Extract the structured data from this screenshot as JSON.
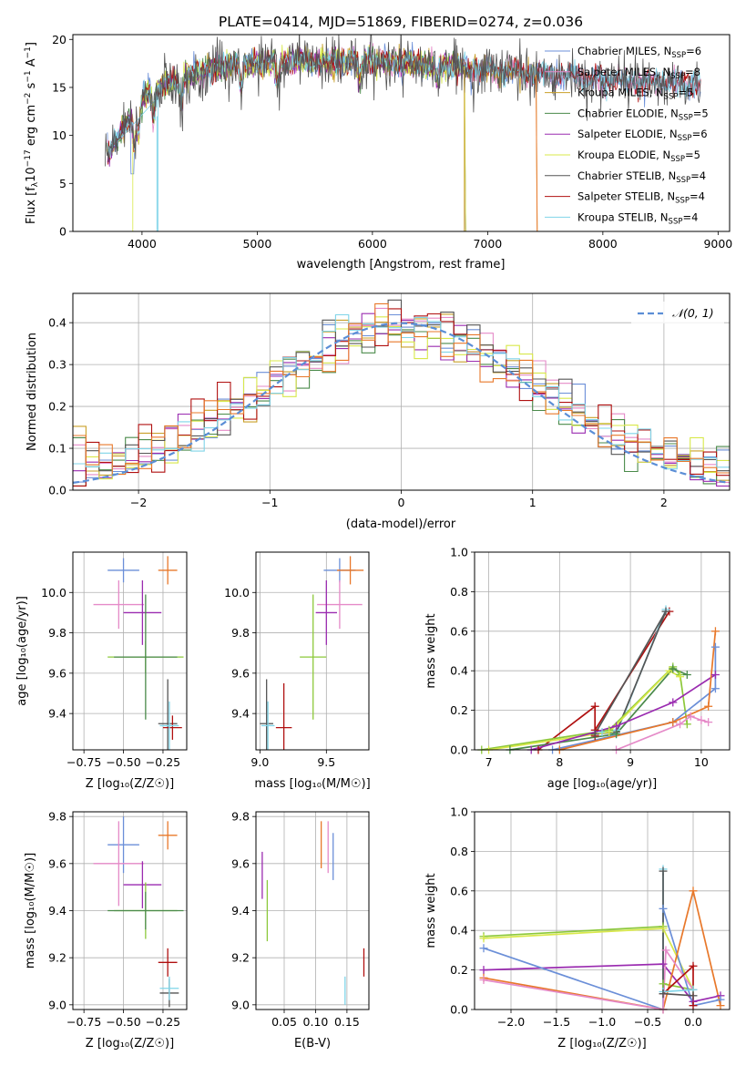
{
  "figure_title": "PLATE=0414, MJD=51869, FIBERID=0274, z=0.036",
  "colors": {
    "Chabrier MILES": "#6b8fd8",
    "Salpeter MILES": "#e58ac8",
    "Kroupa MILES": "#c9a02a",
    "Chabrier ELODIE": "#4a8a4a",
    "Salpeter ELODIE": "#9a2bb0",
    "Kroupa ELODIE": "#d8e84a",
    "Chabrier STELIB": "#555555",
    "Salpeter STELIB": "#b01010",
    "Kroupa STELIB": "#7fd4e8",
    "orange": "#e8782a",
    "lime": "#8cc83a",
    "normal_curve": "#5b8ed6"
  },
  "chart_data": [
    {
      "id": "spectrum",
      "type": "line",
      "xlabel_main": "wavelength [Angstrom, rest frame]",
      "ylabel_main": "Flux [f",
      "ylabel_tail": "10",
      "ylabel_exp": "−17",
      "ylabel_rest": " erg cm",
      "ylabel_rest2": " s",
      "ylabel_rest3": " A",
      "xlim": [
        3400,
        9100
      ],
      "ylim": [
        0,
        20.5
      ],
      "xticks": [
        4000,
        5000,
        6000,
        7000,
        8000,
        9000
      ],
      "yticks": [
        0,
        5,
        10,
        15,
        20
      ],
      "legend": [
        {
          "label": "Chabrier MILES, N",
          "sub": "SSP",
          "eq": "=6",
          "color_key": "Chabrier MILES"
        },
        {
          "label": "Salpeter MILES, N",
          "sub": "SSP",
          "eq": "=8",
          "color_key": "Salpeter MILES"
        },
        {
          "label": "Kroupa MILES, N",
          "sub": "SSP",
          "eq": "=5",
          "color_key": "Kroupa MILES"
        },
        {
          "label": "Chabrier ELODIE, N",
          "sub": "SSP",
          "eq": "=5",
          "color_key": "Chabrier ELODIE"
        },
        {
          "label": "Salpeter ELODIE, N",
          "sub": "SSP",
          "eq": "=6",
          "color_key": "Salpeter ELODIE"
        },
        {
          "label": "Kroupa ELODIE, N",
          "sub": "SSP",
          "eq": "=5",
          "color_key": "Kroupa ELODIE"
        },
        {
          "label": "Chabrier STELIB, N",
          "sub": "SSP",
          "eq": "=4",
          "color_key": "Chabrier STELIB"
        },
        {
          "label": "Salpeter STELIB, N",
          "sub": "SSP",
          "eq": "=4",
          "color_key": "Salpeter STELIB"
        },
        {
          "label": "Kroupa STELIB, N",
          "sub": "SSP",
          "eq": "=4",
          "color_key": "Kroupa STELIB"
        }
      ],
      "continuum": [
        [
          3680,
          7.5
        ],
        [
          3750,
          9
        ],
        [
          3850,
          11
        ],
        [
          3950,
          13
        ],
        [
          4050,
          14.5
        ],
        [
          4200,
          15.3
        ],
        [
          4400,
          16.2
        ],
        [
          4600,
          17.0
        ],
        [
          4800,
          17.4
        ],
        [
          5000,
          17.5
        ],
        [
          5200,
          17.6
        ],
        [
          5400,
          17.7
        ],
        [
          5600,
          17.7
        ],
        [
          5800,
          17.7
        ],
        [
          6000,
          17.8
        ],
        [
          6200,
          17.6
        ],
        [
          6400,
          17.4
        ],
        [
          6600,
          17.2
        ],
        [
          6800,
          17.0
        ],
        [
          7000,
          16.8
        ],
        [
          7200,
          16.6
        ],
        [
          7400,
          16.4
        ],
        [
          7600,
          16.2
        ],
        [
          7800,
          16.0
        ],
        [
          8000,
          15.8
        ],
        [
          8200,
          15.7
        ],
        [
          8400,
          15.6
        ],
        [
          8600,
          15.4
        ],
        [
          8850,
          15.3
        ]
      ],
      "absorption": [
        [
          3934,
          3.5
        ],
        [
          3969,
          3.5
        ],
        [
          4101,
          3
        ],
        [
          4340,
          3
        ],
        [
          4861,
          2.5
        ],
        [
          5175,
          2
        ],
        [
          5890,
          2
        ],
        [
          6563,
          1.5
        ]
      ],
      "cutoffs": [
        {
          "series": "Kroupa ELODIE",
          "start": 3920,
          "end": 6800
        },
        {
          "series": "Chabrier ELODIE",
          "start": 3700,
          "end": 6800
        },
        {
          "series": "Salpeter ELODIE",
          "start": 3700,
          "end": 6800
        },
        {
          "series": "Kroupa MILES",
          "start": 3700,
          "end": 7420
        },
        {
          "series": "Kroupa STELIB",
          "start": 3700,
          "end": 8850
        },
        {
          "series": "Chabrier STELIB",
          "start": 3680,
          "end": 8850
        }
      ]
    },
    {
      "id": "residuals",
      "type": "histogram",
      "xlabel": "(data-model)/error",
      "ylabel": "Normed distribution",
      "xlim": [
        -2.5,
        2.5
      ],
      "ylim": [
        0,
        0.47
      ],
      "xticks": [
        -2,
        -1,
        0,
        1,
        2
      ],
      "xtick_labels": [
        "−2",
        "−1",
        "0",
        "1",
        "2"
      ],
      "yticks": [
        0.0,
        0.1,
        0.2,
        0.3,
        0.4
      ],
      "ytick_labels": [
        "0.0",
        "0.1",
        "0.2",
        "0.3",
        "0.4"
      ],
      "bin_width": 0.1,
      "legend_label": "𝒩(0, 1)"
    },
    {
      "id": "age_vs_Z",
      "type": "errorbar",
      "xlabel": "Z [log₁₀(Z/Z☉)]",
      "ylabel": "age  [log₁₀(age/yr)]",
      "xlim": [
        -0.82,
        -0.1
      ],
      "ylim": [
        9.22,
        10.2
      ],
      "xticks": [
        -0.75,
        -0.5,
        -0.25
      ],
      "xtick_labels": [
        "−0.75",
        "−0.50",
        "−0.25"
      ],
      "yticks": [
        9.4,
        9.6,
        9.8,
        10.0
      ],
      "yticks_labels": [
        "9.4",
        "9.6",
        "9.8",
        "10.0"
      ],
      "points": [
        {
          "x": -0.5,
          "y": 10.11,
          "xerr": 0.1,
          "yerr": 0.06,
          "color_key": "Chabrier MILES"
        },
        {
          "x": -0.22,
          "y": 10.11,
          "xerr": 0.06,
          "yerr": 0.07,
          "color_key": "orange"
        },
        {
          "x": -0.53,
          "y": 9.94,
          "xerr": 0.16,
          "yerr": 0.12,
          "color_key": "Salpeter MILES"
        },
        {
          "x": -0.38,
          "y": 9.9,
          "xerr": 0.12,
          "yerr": 0.16,
          "color_key": "Salpeter ELODIE"
        },
        {
          "x": -0.36,
          "y": 9.68,
          "xerr": 0.24,
          "yerr": 0.08,
          "color_key": "lime"
        },
        {
          "x": -0.36,
          "y": 9.68,
          "xerr": 0.2,
          "yerr": 0.31,
          "color_key": "Chabrier ELODIE"
        },
        {
          "x": -0.22,
          "y": 9.35,
          "xerr": 0.06,
          "yerr": 0.22,
          "color_key": "Chabrier STELIB"
        },
        {
          "x": -0.19,
          "y": 9.33,
          "xerr": 0.06,
          "yerr": 0.06,
          "color_key": "Salpeter STELIB"
        },
        {
          "x": -0.21,
          "y": 9.34,
          "xerr": 0.06,
          "yerr": 0.12,
          "color_key": "Kroupa STELIB"
        }
      ]
    },
    {
      "id": "age_vs_mass",
      "type": "errorbar",
      "xlabel": "mass [log₁₀(M/M☉)]",
      "xlim": [
        8.97,
        9.82
      ],
      "ylim": [
        9.22,
        10.2
      ],
      "xticks": [
        9.0,
        9.5
      ],
      "xtick_labels": [
        "9.0",
        "9.5"
      ],
      "yticks": [
        9.4,
        9.6,
        9.8,
        10.0
      ],
      "yticks_labels": [
        "9.4",
        "9.6",
        "9.8",
        "10.0"
      ],
      "points": [
        {
          "x": 9.6,
          "y": 10.11,
          "xerr": 0.12,
          "yerr": 0.06,
          "color_key": "Chabrier MILES"
        },
        {
          "x": 9.68,
          "y": 10.11,
          "xerr": 0.1,
          "yerr": 0.07,
          "color_key": "orange"
        },
        {
          "x": 9.6,
          "y": 9.94,
          "xerr": 0.17,
          "yerr": 0.12,
          "color_key": "Salpeter MILES"
        },
        {
          "x": 9.5,
          "y": 9.9,
          "xerr": 0.08,
          "yerr": 0.16,
          "color_key": "Salpeter ELODIE"
        },
        {
          "x": 9.4,
          "y": 9.68,
          "xerr": 0.1,
          "yerr": 0.31,
          "color_key": "lime"
        },
        {
          "x": 9.05,
          "y": 9.35,
          "xerr": 0.05,
          "yerr": 0.22,
          "color_key": "Chabrier STELIB"
        },
        {
          "x": 9.18,
          "y": 9.33,
          "xerr": 0.06,
          "yerr": 0.22,
          "color_key": "Salpeter STELIB"
        },
        {
          "x": 9.06,
          "y": 9.34,
          "xerr": 0.05,
          "yerr": 0.12,
          "color_key": "Kroupa STELIB"
        }
      ]
    },
    {
      "id": "weight_vs_age",
      "type": "line",
      "xlabel": "age  [log₁₀(age/yr)]",
      "ylabel": "mass weight",
      "xlim": [
        6.8,
        10.4
      ],
      "ylim": [
        0,
        1.0
      ],
      "xticks": [
        7,
        8,
        9,
        10
      ],
      "xtick_labels": [
        "7",
        "8",
        "9",
        "10"
      ],
      "yticks": [
        0.0,
        0.2,
        0.4,
        0.6,
        0.8,
        1.0
      ],
      "ytick_labels": [
        "0.0",
        "0.2",
        "0.4",
        "0.6",
        "0.8",
        "1.0"
      ],
      "series": [
        {
          "color_key": "Salpeter STELIB",
          "x": [
            7.7,
            8.5,
            8.5,
            8.5,
            9.55
          ],
          "y": [
            0.0,
            0.22,
            0.07,
            0.1,
            0.7
          ]
        },
        {
          "color_key": "Kroupa STELIB",
          "x": [
            8.8,
            9.5,
            8.8,
            8.6,
            8.8
          ],
          "y": [
            0.08,
            0.71,
            0.08,
            0.09,
            0.1
          ]
        },
        {
          "color_key": "Chabrier STELIB",
          "x": [
            8.5,
            9.5,
            8.8,
            8.5
          ],
          "y": [
            0.08,
            0.7,
            0.09,
            0.08
          ]
        },
        {
          "color_key": "lime",
          "x": [
            6.9,
            8.7,
            9.6,
            9.7,
            9.8
          ],
          "y": [
            0.0,
            0.1,
            0.42,
            0.38,
            0.13
          ]
        },
        {
          "color_key": "Kroupa ELODIE",
          "x": [
            7.0,
            8.7,
            9.55,
            9.7
          ],
          "y": [
            0.0,
            0.09,
            0.4,
            0.37
          ]
        },
        {
          "color_key": "Chabrier ELODIE",
          "x": [
            7.3,
            8.8,
            9.6,
            9.8
          ],
          "y": [
            0.0,
            0.08,
            0.41,
            0.38
          ]
        },
        {
          "color_key": "Salpeter ELODIE",
          "x": [
            7.6,
            8.8,
            9.6,
            10.2
          ],
          "y": [
            0.0,
            0.12,
            0.24,
            0.38
          ]
        },
        {
          "color_key": "Chabrier MILES",
          "x": [
            7.9,
            9.6,
            10.2,
            10.2
          ],
          "y": [
            0.0,
            0.14,
            0.31,
            0.52
          ]
        },
        {
          "color_key": "orange",
          "x": [
            8.0,
            9.6,
            10.1,
            10.2
          ],
          "y": [
            0.0,
            0.14,
            0.22,
            0.6
          ]
        },
        {
          "color_key": "Salpeter MILES",
          "x": [
            8.8,
            9.7,
            9.85,
            10.0,
            10.1
          ],
          "y": [
            0.0,
            0.13,
            0.17,
            0.15,
            0.14
          ]
        }
      ]
    },
    {
      "id": "mass_vs_Z",
      "type": "errorbar",
      "xlabel": "Z [log₁₀(Z/Z☉)]",
      "ylabel": "mass [log₁₀(M/M☉)]",
      "xlim": [
        -0.82,
        -0.1
      ],
      "ylim": [
        8.98,
        9.82
      ],
      "xticks": [
        -0.75,
        -0.5,
        -0.25
      ],
      "xtick_labels": [
        "−0.75",
        "−0.50",
        "−0.25"
      ],
      "yticks": [
        9.0,
        9.2,
        9.4,
        9.6,
        9.8
      ],
      "yticks_labels": [
        "9.0",
        "9.2",
        "9.4",
        "9.6",
        "9.8"
      ],
      "points": [
        {
          "x": -0.5,
          "y": 9.68,
          "xerr": 0.1,
          "yerr": 0.12,
          "color_key": "Chabrier MILES"
        },
        {
          "x": -0.22,
          "y": 9.72,
          "xerr": 0.06,
          "yerr": 0.06,
          "color_key": "orange"
        },
        {
          "x": -0.53,
          "y": 9.6,
          "xerr": 0.16,
          "yerr": 0.18,
          "color_key": "Salpeter MILES"
        },
        {
          "x": -0.38,
          "y": 9.51,
          "xerr": 0.12,
          "yerr": 0.1,
          "color_key": "Salpeter ELODIE"
        },
        {
          "x": -0.36,
          "y": 9.4,
          "xerr": 0.2,
          "yerr": 0.12,
          "color_key": "lime"
        },
        {
          "x": -0.36,
          "y": 9.4,
          "xerr": 0.24,
          "yerr": 0.08,
          "color_key": "Chabrier ELODIE"
        },
        {
          "x": -0.22,
          "y": 9.18,
          "xerr": 0.06,
          "yerr": 0.06,
          "color_key": "Salpeter STELIB"
        },
        {
          "x": -0.21,
          "y": 9.05,
          "xerr": 0.06,
          "yerr": 0.06,
          "color_key": "Chabrier STELIB"
        },
        {
          "x": -0.21,
          "y": 9.07,
          "xerr": 0.06,
          "yerr": 0.05,
          "color_key": "Kroupa STELIB"
        }
      ]
    },
    {
      "id": "mass_vs_ebv",
      "type": "errorbar",
      "xlabel": "E(B-V)",
      "xlim": [
        0.005,
        0.185
      ],
      "ylim": [
        8.98,
        9.82
      ],
      "xticks": [
        0.05,
        0.1,
        0.15
      ],
      "xtick_labels": [
        "0.05",
        "0.10",
        "0.15"
      ],
      "yticks": [
        9.0,
        9.2,
        9.4,
        9.6,
        9.8
      ],
      "yticks_labels": [
        "9.0",
        "9.2",
        "9.4",
        "9.6",
        "9.8"
      ],
      "points": [
        {
          "x": 0.015,
          "y": 9.55,
          "yerr": 0.1,
          "color_key": "Salpeter ELODIE"
        },
        {
          "x": 0.023,
          "y": 9.4,
          "yerr": 0.13,
          "color_key": "lime"
        },
        {
          "x": 0.109,
          "y": 9.68,
          "yerr": 0.1,
          "color_key": "orange"
        },
        {
          "x": 0.12,
          "y": 9.67,
          "yerr": 0.11,
          "color_key": "Salpeter MILES"
        },
        {
          "x": 0.128,
          "y": 9.63,
          "yerr": 0.1,
          "color_key": "Chabrier MILES"
        },
        {
          "x": 0.147,
          "y": 9.06,
          "yerr": 0.06,
          "color_key": "Kroupa STELIB"
        },
        {
          "x": 0.177,
          "y": 9.18,
          "yerr": 0.06,
          "color_key": "Salpeter STELIB"
        }
      ]
    },
    {
      "id": "weight_vs_Z",
      "type": "line",
      "xlabel": "Z [log₁₀(Z/Z☉)]",
      "ylabel": "mass weight",
      "xlim": [
        -2.4,
        0.4
      ],
      "ylim": [
        0,
        1.0
      ],
      "xticks": [
        -2.0,
        -1.5,
        -1.0,
        -0.5,
        0.0
      ],
      "xtick_labels": [
        "−2.0",
        "−1.5",
        "−1.0",
        "−0.5",
        "0.0"
      ],
      "yticks": [
        0.0,
        0.2,
        0.4,
        0.6,
        0.8,
        1.0
      ],
      "ytick_labels": [
        "0.0",
        "0.2",
        "0.4",
        "0.6",
        "0.8",
        "1.0"
      ],
      "series": [
        {
          "color_key": "lime",
          "x": [
            -2.3,
            -0.33,
            -0.33,
            0.0,
            0.0
          ],
          "y": [
            0.37,
            0.42,
            0.13,
            0.1,
            0.1
          ]
        },
        {
          "color_key": "Kroupa ELODIE",
          "x": [
            -2.3,
            -0.33,
            0.0
          ],
          "y": [
            0.36,
            0.41,
            0.1
          ]
        },
        {
          "color_key": "Salpeter ELODIE",
          "x": [
            -2.3,
            -0.33,
            0.0,
            0.3
          ],
          "y": [
            0.2,
            0.23,
            0.04,
            0.07
          ]
        },
        {
          "color_key": "Chabrier MILES",
          "x": [
            -2.3,
            -0.33,
            -0.33,
            0.0,
            0.3
          ],
          "y": [
            0.31,
            0.0,
            0.51,
            0.02,
            0.05
          ]
        },
        {
          "color_key": "orange",
          "x": [
            -2.3,
            -0.33,
            0.0,
            0.3
          ],
          "y": [
            0.16,
            0.0,
            0.6,
            0.02
          ]
        },
        {
          "color_key": "Salpeter MILES",
          "x": [
            -2.3,
            -0.33,
            -0.3,
            0.0
          ],
          "y": [
            0.15,
            0.0,
            0.3,
            0.1
          ]
        },
        {
          "color_key": "Salpeter STELIB",
          "x": [
            -0.33,
            0.0,
            0.0
          ],
          "y": [
            0.08,
            0.22,
            0.02
          ]
        },
        {
          "color_key": "Kroupa STELIB",
          "x": [
            -0.33,
            -0.33,
            0.0
          ],
          "y": [
            0.71,
            0.09,
            0.1
          ]
        },
        {
          "color_key": "Chabrier STELIB",
          "x": [
            -0.33,
            -0.33,
            0.0
          ],
          "y": [
            0.7,
            0.08,
            0.07
          ]
        }
      ]
    }
  ]
}
